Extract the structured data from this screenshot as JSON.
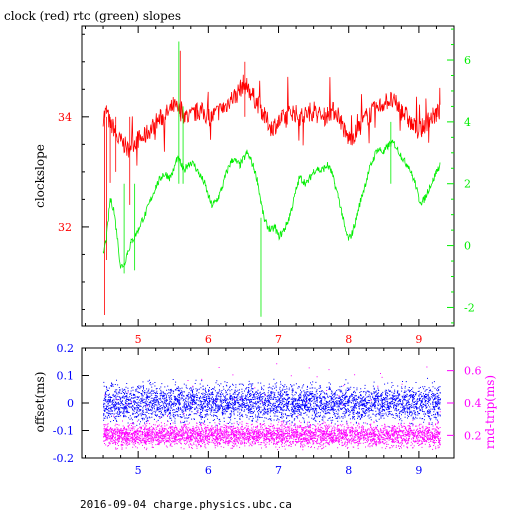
{
  "colors": {
    "clock": "#ff0000",
    "rtc": "#00ee00",
    "offset": "#0000ff",
    "roundtrip": "#ff00ff",
    "axis": "#000000",
    "background": "#ffffff"
  },
  "chart_data": [
    {
      "type": "line",
      "title": "clock (red) rtc (green) slopes",
      "ylabel": "clockslope",
      "x_ticks": [
        5,
        6,
        7,
        8,
        9
      ],
      "xlim": [
        4.2,
        9.5
      ],
      "series": [
        {
          "name": "clock",
          "axis": "left",
          "ylim": [
            30.2,
            35.65
          ],
          "ticks": [
            32,
            34
          ],
          "points": [
            [
              4.5,
              34.0
            ],
            [
              4.55,
              34.1
            ],
            [
              4.6,
              33.85
            ],
            [
              4.65,
              33.8
            ],
            [
              4.7,
              33.6
            ],
            [
              4.75,
              33.55
            ],
            [
              4.8,
              33.5
            ],
            [
              4.85,
              33.4
            ],
            [
              4.9,
              33.5
            ],
            [
              4.95,
              33.55
            ],
            [
              5.0,
              33.6
            ],
            [
              5.05,
              33.6
            ],
            [
              5.1,
              33.65
            ],
            [
              5.15,
              33.75
            ],
            [
              5.2,
              33.8
            ],
            [
              5.25,
              33.9
            ],
            [
              5.3,
              33.95
            ],
            [
              5.35,
              34.0
            ],
            [
              5.4,
              34.05
            ],
            [
              5.45,
              34.1
            ],
            [
              5.5,
              34.2
            ],
            [
              5.55,
              34.15
            ],
            [
              5.6,
              34.1
            ],
            [
              5.65,
              34.05
            ],
            [
              5.7,
              34.0
            ],
            [
              5.75,
              34.0
            ],
            [
              5.8,
              34.05
            ],
            [
              5.85,
              34.1
            ],
            [
              5.9,
              34.1
            ],
            [
              5.95,
              34.05
            ],
            [
              6.0,
              34.0
            ],
            [
              6.05,
              34.0
            ],
            [
              6.1,
              34.05
            ],
            [
              6.15,
              34.1
            ],
            [
              6.2,
              34.15
            ],
            [
              6.25,
              34.2
            ],
            [
              6.3,
              34.3
            ],
            [
              6.35,
              34.35
            ],
            [
              6.4,
              34.4
            ],
            [
              6.45,
              34.5
            ],
            [
              6.5,
              34.6
            ],
            [
              6.55,
              34.55
            ],
            [
              6.6,
              34.45
            ],
            [
              6.65,
              34.35
            ],
            [
              6.7,
              34.25
            ],
            [
              6.75,
              34.15
            ],
            [
              6.8,
              34.0
            ],
            [
              6.85,
              33.9
            ],
            [
              6.9,
              33.8
            ],
            [
              6.95,
              33.85
            ],
            [
              7.0,
              33.9
            ],
            [
              7.05,
              33.95
            ],
            [
              7.1,
              34.0
            ],
            [
              7.15,
              34.05
            ],
            [
              7.2,
              34.1
            ],
            [
              7.25,
              34.05
            ],
            [
              7.3,
              34.0
            ],
            [
              7.35,
              34.0
            ],
            [
              7.4,
              34.05
            ],
            [
              7.45,
              34.1
            ],
            [
              7.5,
              34.1
            ],
            [
              7.55,
              34.05
            ],
            [
              7.6,
              34.0
            ],
            [
              7.65,
              34.0
            ],
            [
              7.7,
              34.05
            ],
            [
              7.75,
              34.1
            ],
            [
              7.8,
              34.1
            ],
            [
              7.85,
              34.05
            ],
            [
              7.9,
              33.9
            ],
            [
              7.95,
              33.7
            ],
            [
              8.0,
              33.6
            ],
            [
              8.05,
              33.65
            ],
            [
              8.1,
              33.7
            ],
            [
              8.15,
              33.8
            ],
            [
              8.2,
              33.9
            ],
            [
              8.25,
              34.0
            ],
            [
              8.3,
              34.05
            ],
            [
              8.35,
              34.1
            ],
            [
              8.4,
              34.15
            ],
            [
              8.45,
              34.2
            ],
            [
              8.5,
              34.25
            ],
            [
              8.55,
              34.3
            ],
            [
              8.6,
              34.3
            ],
            [
              8.65,
              34.25
            ],
            [
              8.7,
              34.2
            ],
            [
              8.75,
              34.1
            ],
            [
              8.8,
              34.05
            ],
            [
              8.85,
              33.95
            ],
            [
              8.9,
              33.85
            ],
            [
              8.95,
              33.8
            ],
            [
              9.0,
              33.75
            ],
            [
              9.05,
              33.8
            ],
            [
              9.1,
              33.9
            ],
            [
              9.15,
              33.95
            ],
            [
              9.2,
              34.0
            ],
            [
              9.25,
              34.05
            ],
            [
              9.3,
              34.1
            ]
          ]
        },
        {
          "name": "rtc",
          "axis": "right",
          "ylim": [
            -2.6,
            7.1
          ],
          "ticks": [
            -2,
            0,
            2,
            4,
            6
          ],
          "points": [
            [
              4.5,
              -0.3
            ],
            [
              4.55,
              0.3
            ],
            [
              4.6,
              1.5
            ],
            [
              4.65,
              1.2
            ],
            [
              4.7,
              0.3
            ],
            [
              4.75,
              -0.7
            ],
            [
              4.8,
              -0.6
            ],
            [
              4.85,
              -0.2
            ],
            [
              4.9,
              0.1
            ],
            [
              4.95,
              0.3
            ],
            [
              5.0,
              0.5
            ],
            [
              5.05,
              0.8
            ],
            [
              5.1,
              1.0
            ],
            [
              5.15,
              1.3
            ],
            [
              5.2,
              1.6
            ],
            [
              5.25,
              1.9
            ],
            [
              5.3,
              2.1
            ],
            [
              5.35,
              2.3
            ],
            [
              5.4,
              2.3
            ],
            [
              5.45,
              2.2
            ],
            [
              5.5,
              2.4
            ],
            [
              5.55,
              2.8
            ],
            [
              5.6,
              2.7
            ],
            [
              5.65,
              2.4
            ],
            [
              5.7,
              2.6
            ],
            [
              5.75,
              2.7
            ],
            [
              5.8,
              2.6
            ],
            [
              5.85,
              2.4
            ],
            [
              5.9,
              2.2
            ],
            [
              5.95,
              2.0
            ],
            [
              6.0,
              1.6
            ],
            [
              6.05,
              1.3
            ],
            [
              6.1,
              1.4
            ],
            [
              6.15,
              1.6
            ],
            [
              6.2,
              1.9
            ],
            [
              6.25,
              2.3
            ],
            [
              6.3,
              2.6
            ],
            [
              6.35,
              2.8
            ],
            [
              6.4,
              2.7
            ],
            [
              6.45,
              2.6
            ],
            [
              6.5,
              2.8
            ],
            [
              6.55,
              3.0
            ],
            [
              6.6,
              2.8
            ],
            [
              6.65,
              2.5
            ],
            [
              6.7,
              2.1
            ],
            [
              6.75,
              1.4
            ],
            [
              6.8,
              0.8
            ],
            [
              6.85,
              0.6
            ],
            [
              6.9,
              0.5
            ],
            [
              6.95,
              0.6
            ],
            [
              7.0,
              0.3
            ],
            [
              7.05,
              0.4
            ],
            [
              7.1,
              0.6
            ],
            [
              7.15,
              0.9
            ],
            [
              7.2,
              1.3
            ],
            [
              7.25,
              1.8
            ],
            [
              7.3,
              2.2
            ],
            [
              7.35,
              2.1
            ],
            [
              7.4,
              2.0
            ],
            [
              7.45,
              2.2
            ],
            [
              7.5,
              2.4
            ],
            [
              7.55,
              2.5
            ],
            [
              7.6,
              2.4
            ],
            [
              7.65,
              2.5
            ],
            [
              7.7,
              2.6
            ],
            [
              7.75,
              2.4
            ],
            [
              7.8,
              2.0
            ],
            [
              7.85,
              1.6
            ],
            [
              7.9,
              1.1
            ],
            [
              7.95,
              0.5
            ],
            [
              8.0,
              0.2
            ],
            [
              8.05,
              0.4
            ],
            [
              8.1,
              0.8
            ],
            [
              8.15,
              1.3
            ],
            [
              8.2,
              1.7
            ],
            [
              8.25,
              2.1
            ],
            [
              8.3,
              2.5
            ],
            [
              8.35,
              2.8
            ],
            [
              8.4,
              3.1
            ],
            [
              8.45,
              3.1
            ],
            [
              8.5,
              3.0
            ],
            [
              8.55,
              3.2
            ],
            [
              8.6,
              3.3
            ],
            [
              8.65,
              3.3
            ],
            [
              8.7,
              3.1
            ],
            [
              8.75,
              2.9
            ],
            [
              8.8,
              2.7
            ],
            [
              8.85,
              2.6
            ],
            [
              8.9,
              2.3
            ],
            [
              8.95,
              2.0
            ],
            [
              9.0,
              1.5
            ],
            [
              9.05,
              1.4
            ],
            [
              9.1,
              1.6
            ],
            [
              9.15,
              1.9
            ],
            [
              9.2,
              2.1
            ],
            [
              9.25,
              2.4
            ],
            [
              9.3,
              2.6
            ]
          ]
        }
      ]
    },
    {
      "type": "scatter",
      "x_ticks": [
        5,
        6,
        7,
        8,
        9
      ],
      "xlim": [
        4.2,
        9.5
      ],
      "series": [
        {
          "name": "offset",
          "axis": "left",
          "ylabel": "offset(ms)",
          "ylim": [
            -0.2,
            0.2
          ],
          "ticks": [
            -0.2,
            -0.1,
            0,
            0.1,
            0.2
          ],
          "band": [
            -0.045,
            0.045
          ],
          "center": 0.0,
          "x_range": [
            4.5,
            9.3
          ]
        },
        {
          "name": "roundtrip",
          "axis": "right",
          "ylabel": "rnd-trip(ms)",
          "ylim": [
            0.06,
            0.74
          ],
          "ticks": [
            0.2,
            0.4,
            0.6
          ],
          "band": [
            0.14,
            0.27
          ],
          "center": 0.2,
          "x_range": [
            4.5,
            9.3
          ]
        }
      ]
    }
  ],
  "footer": "2016-09-04 charge.physics.ubc.ca"
}
